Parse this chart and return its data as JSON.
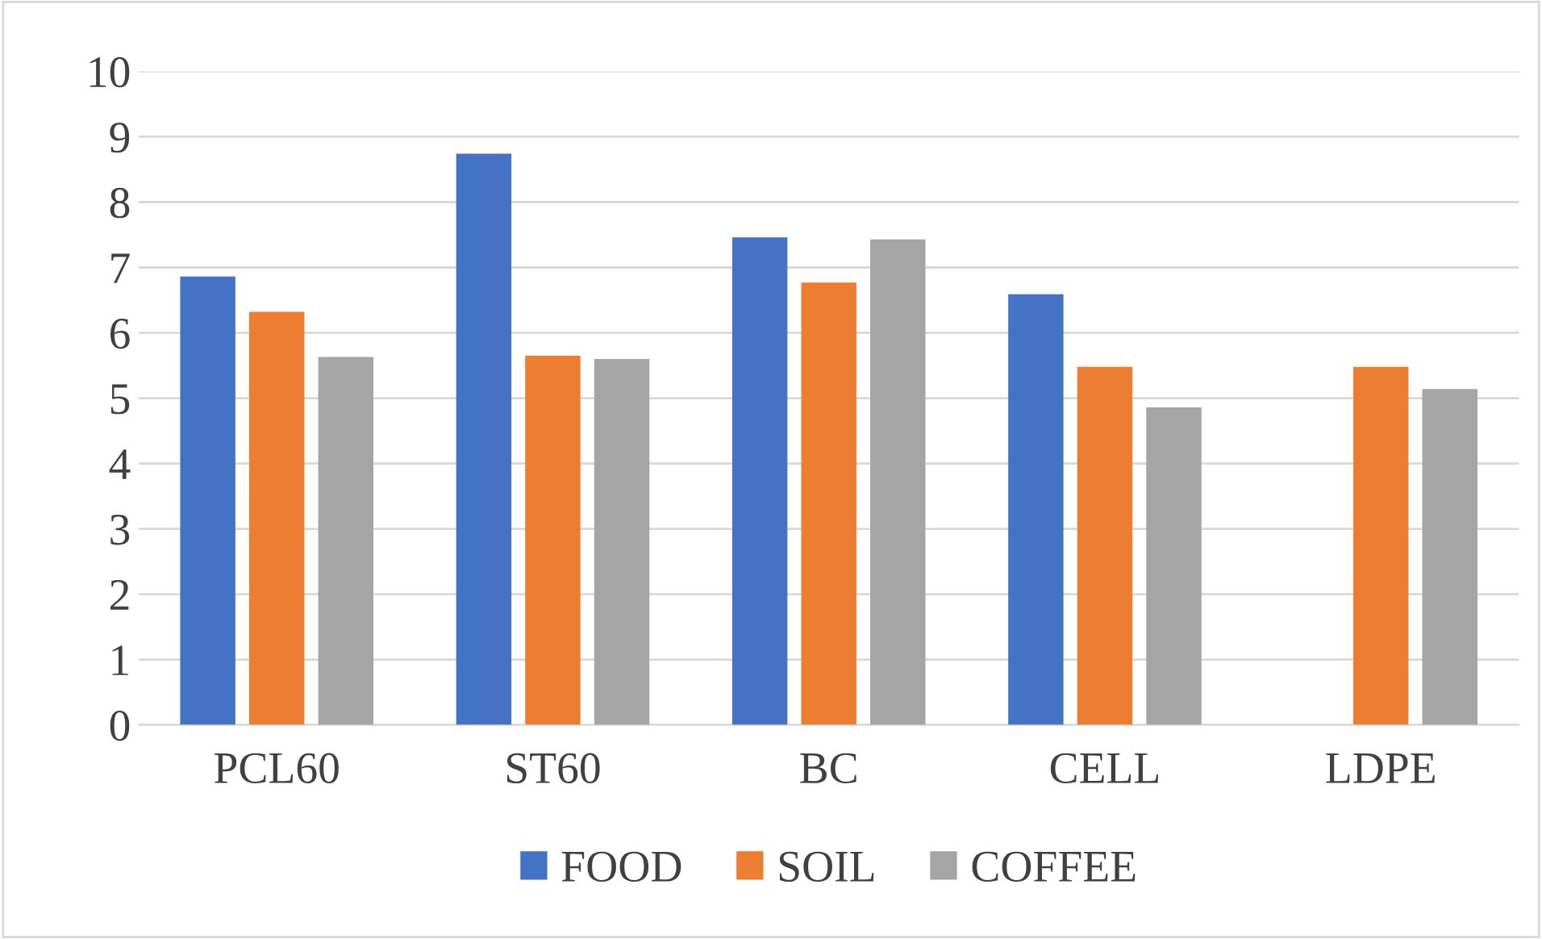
{
  "chart_data": {
    "type": "bar",
    "categories": [
      "PCL60",
      "ST60",
      "BC",
      "CELL",
      "LDPE"
    ],
    "series": [
      {
        "name": "FOOD",
        "color": "#4472c4",
        "values": [
          6.86,
          8.74,
          7.46,
          6.59,
          null
        ]
      },
      {
        "name": "SOIL",
        "color": "#ed7d31",
        "values": [
          6.32,
          5.65,
          6.77,
          5.48,
          5.48
        ]
      },
      {
        "name": "COFFEE",
        "color": "#a5a5a5",
        "values": [
          5.63,
          5.6,
          7.43,
          4.86,
          5.14
        ]
      }
    ],
    "ylim": [
      0,
      10
    ],
    "yticks": [
      0,
      1,
      2,
      3,
      4,
      5,
      6,
      7,
      8,
      9,
      10
    ],
    "grid": "y",
    "legend": "bottom"
  }
}
